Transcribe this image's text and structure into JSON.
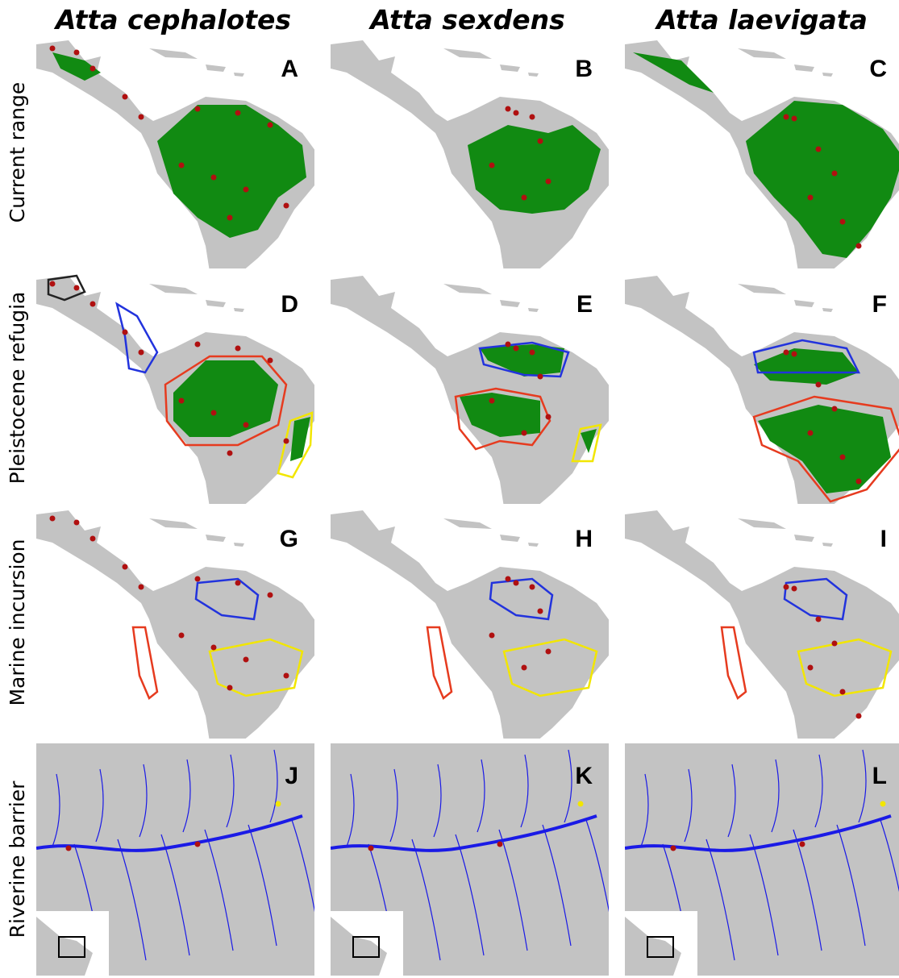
{
  "columns": [
    "Atta cephalotes",
    "Atta sexdens",
    "Atta laevigata"
  ],
  "rows": [
    "Current range",
    "Pleistocene refugia",
    "Marine incursion",
    "Riverine barrier"
  ],
  "panels": [
    [
      "A",
      "B",
      "C"
    ],
    [
      "D",
      "E",
      "F"
    ],
    [
      "G",
      "H",
      "I"
    ],
    [
      "J",
      "K",
      "L"
    ]
  ]
}
